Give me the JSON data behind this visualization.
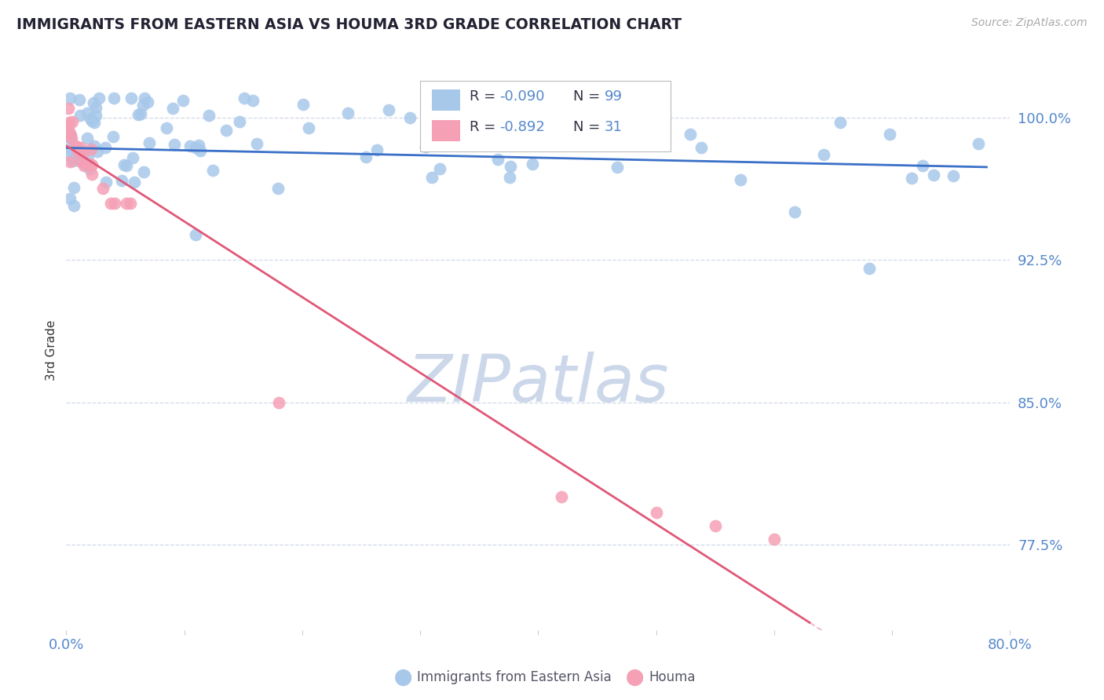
{
  "title": "IMMIGRANTS FROM EASTERN ASIA VS HOUMA 3RD GRADE CORRELATION CHART",
  "source": "Source: ZipAtlas.com",
  "ylabel": "3rd Grade",
  "y_tick_vals": [
    1.0,
    0.925,
    0.85,
    0.775
  ],
  "y_tick_labels": [
    "100.0%",
    "92.5%",
    "85.0%",
    "77.5%"
  ],
  "x_tick_vals": [
    0.0,
    0.1,
    0.2,
    0.3,
    0.4,
    0.5,
    0.6,
    0.7,
    0.8
  ],
  "x_tick_label_left": "0.0%",
  "x_tick_label_right": "80.0%",
  "xlim": [
    0.0,
    0.8
  ],
  "ylim": [
    0.73,
    1.025
  ],
  "blue_R": "-0.090",
  "blue_N": "99",
  "pink_R": "-0.892",
  "pink_N": "31",
  "blue_scatter_color": "#a8c8ea",
  "blue_line_color": "#3a70c8",
  "pink_scatter_color": "#f5a0b5",
  "pink_line_color": "#e05878",
  "grid_color": "#d0d8e8",
  "tick_color": "#5588cc",
  "title_color": "#222233",
  "source_color": "#aaaaaa",
  "watermark_color": "#ccd8ea",
  "legend_box_color": "#cccccc",
  "bottom_legend_color": "#555566"
}
